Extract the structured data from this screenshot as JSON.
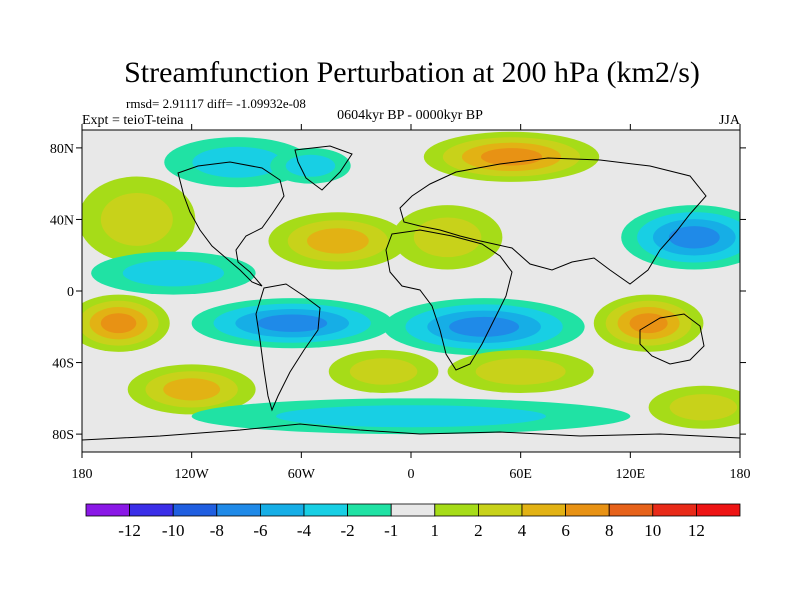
{
  "chart_data": {
    "type": "heatmap",
    "title": "Streamfunction Perturbation at 200 hPa (km2/s)",
    "stats": "rmsd= 2.91117  diff= -1.09932e-08",
    "left_label": "Expt = teioT-teina",
    "center_label": "0604kyr BP - 0000kyr BP",
    "right_label": "JJA",
    "x_ticks": [
      "180",
      "120W",
      "60W",
      "0",
      "60E",
      "120E",
      "180"
    ],
    "y_ticks": [
      "80N",
      "40N",
      "0",
      "40S",
      "80S"
    ],
    "xlim": [
      -180,
      180
    ],
    "ylim": [
      -90,
      90
    ],
    "colorbar": {
      "labels": [
        "-12",
        "-10",
        "-8",
        "-6",
        "-4",
        "-2",
        "-1",
        "1",
        "2",
        "4",
        "6",
        "8",
        "10",
        "12"
      ],
      "colors": [
        "#8a18e6",
        "#3b2ee8",
        "#1f5ee0",
        "#1f8ae8",
        "#16aee6",
        "#18cfe4",
        "#20e2a4",
        "#e8e8e8",
        "#a6dc18",
        "#c8d21a",
        "#e2b214",
        "#e89214",
        "#e6621a",
        "#e82a18",
        "#ee1414"
      ]
    },
    "fields": [
      {
        "name": "north-atlantic-low",
        "lon": -95,
        "lat": 72,
        "rx": 40,
        "ry": 14,
        "value": -2
      },
      {
        "name": "greenland-low",
        "lon": -55,
        "lat": 70,
        "rx": 22,
        "ry": 10,
        "value": -3
      },
      {
        "name": "siberia-high",
        "lon": 55,
        "lat": 75,
        "rx": 48,
        "ry": 14,
        "value": 6
      },
      {
        "name": "north-pacific-high",
        "lon": -150,
        "lat": 40,
        "rx": 32,
        "ry": 24,
        "value": 3
      },
      {
        "name": "north-atlantic-high",
        "lon": -40,
        "lat": 28,
        "rx": 38,
        "ry": 16,
        "value": 5
      },
      {
        "name": "arabian-high",
        "lon": 20,
        "lat": 30,
        "rx": 30,
        "ry": 18,
        "value": 2
      },
      {
        "name": "east-asia-low",
        "lon": 155,
        "lat": 30,
        "rx": 40,
        "ry": 18,
        "value": -7
      },
      {
        "name": "pacific-equatorial-low",
        "lon": -130,
        "lat": 10,
        "rx": 45,
        "ry": 12,
        "value": -3
      },
      {
        "name": "south-america-low",
        "lon": -65,
        "lat": -18,
        "rx": 55,
        "ry": 14,
        "value": -7
      },
      {
        "name": "indian-ocean-low",
        "lon": 40,
        "lat": -20,
        "rx": 55,
        "ry": 16,
        "value": -6
      },
      {
        "name": "south-pacific-high",
        "lon": -160,
        "lat": -18,
        "rx": 28,
        "ry": 16,
        "value": 7
      },
      {
        "name": "australia-high",
        "lon": 130,
        "lat": -18,
        "rx": 30,
        "ry": 16,
        "value": 7
      },
      {
        "name": "south-atlantic-high",
        "lon": -15,
        "lat": -45,
        "rx": 30,
        "ry": 12,
        "value": 3
      },
      {
        "name": "southern-indian-high",
        "lon": 60,
        "lat": -45,
        "rx": 40,
        "ry": 12,
        "value": 3
      },
      {
        "name": "southern-pacific-high",
        "lon": -120,
        "lat": -55,
        "rx": 35,
        "ry": 14,
        "value": 4
      },
      {
        "name": "antarctic-low",
        "lon": 0,
        "lat": -70,
        "rx": 120,
        "ry": 10,
        "value": -2
      },
      {
        "name": "southwest-pacific-high",
        "lon": 160,
        "lat": -65,
        "rx": 30,
        "ry": 12,
        "value": 3
      }
    ]
  }
}
